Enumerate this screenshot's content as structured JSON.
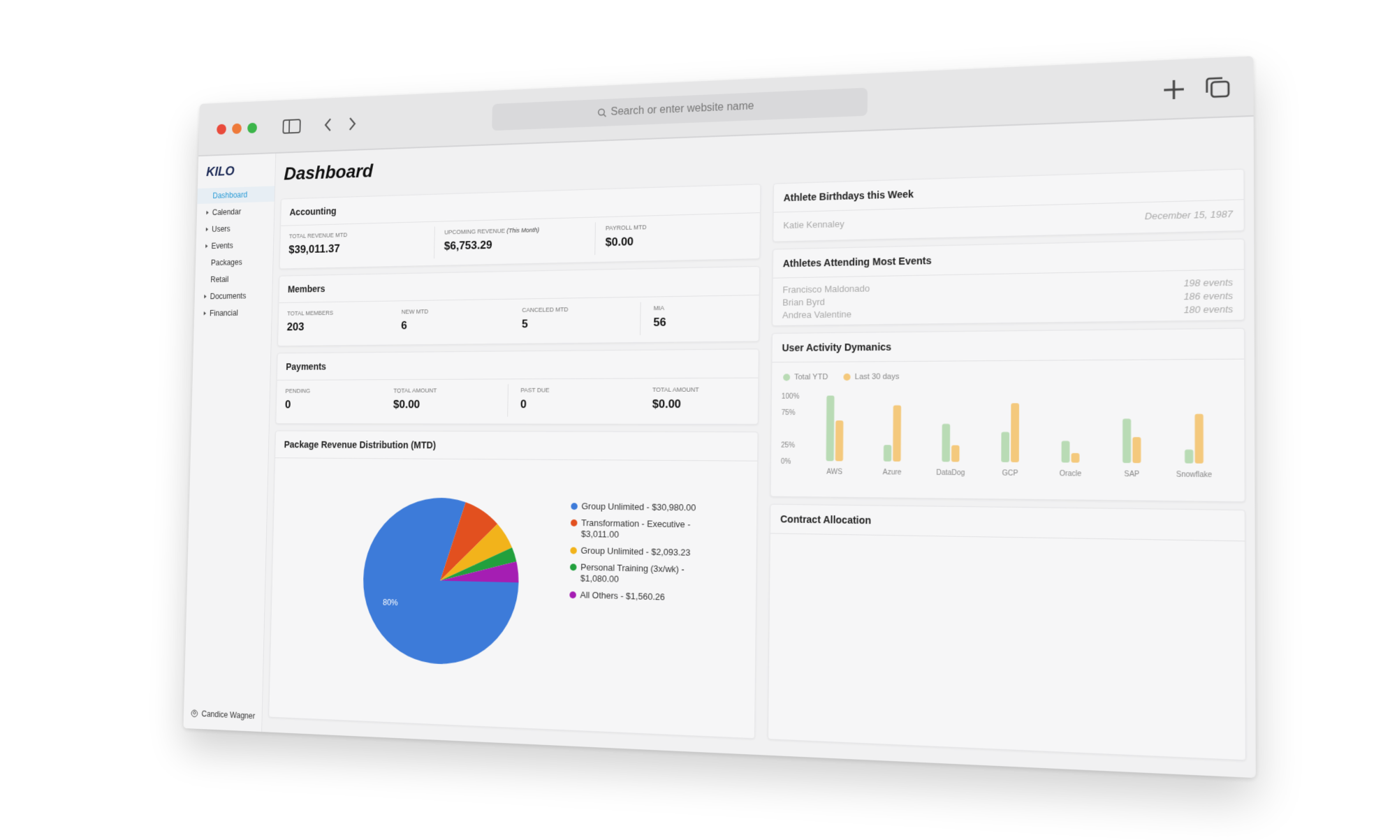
{
  "browser": {
    "search_placeholder": "Search or enter website name"
  },
  "sidebar": {
    "logo": "KILO",
    "nav": [
      "Dashboard",
      "Calendar",
      "Users",
      "Events",
      "Packages",
      "Retail",
      "Documents",
      "Financial"
    ],
    "user": "Candice Wagner"
  },
  "header": {
    "title": "Dashboard"
  },
  "accounting": {
    "title": "Accounting",
    "stats": [
      {
        "label": "TOTAL REVENUE MTD",
        "value": "$39,011.37"
      },
      {
        "label": "UPCOMING REVENUE",
        "note": "(This Month)",
        "value": "$6,753.29"
      },
      {
        "label": "PAYROLL MTD",
        "value": "$0.00"
      }
    ]
  },
  "members": {
    "title": "Members",
    "stats": [
      {
        "label": "TOTAL MEMBERS",
        "value": "203"
      },
      {
        "label": "NEW MTD",
        "value": "6"
      },
      {
        "label": "CANCELED MTD",
        "value": "5"
      },
      {
        "label": "MIA",
        "value": "56"
      }
    ]
  },
  "payments": {
    "title": "Payments",
    "stats": [
      {
        "label": "PENDING",
        "value": "0"
      },
      {
        "label": "TOTAL AMOUNT",
        "value": "$0.00"
      },
      {
        "label": "PAST DUE",
        "value": "0"
      },
      {
        "label": "TOTAL AMOUNT",
        "value": "$0.00"
      }
    ]
  },
  "birthdays": {
    "title": "Athlete Birthdays this Week",
    "rows": [
      {
        "name": "Katie Kennaley",
        "date": "December 15, 1987"
      }
    ]
  },
  "attendance": {
    "title": "Athletes Attending Most Events",
    "rows": [
      {
        "name": "Francisco Maldonado",
        "count": "198 events"
      },
      {
        "name": "Brian Byrd",
        "count": "186 events"
      },
      {
        "name": "Andrea Valentine",
        "count": "180 events"
      }
    ]
  },
  "contract": {
    "title": "Contract Allocation"
  },
  "chart_data": [
    {
      "type": "pie",
      "title": "Package Revenue Distribution (MTD)",
      "categories": [
        "Group Unlimited - $30,980.00",
        "Transformation - Executive - $3,011.00",
        "Group Unlimited - $2,093.23",
        "Personal Training (3x/wk) - $1,080.00",
        "All Others - $1,560.26"
      ],
      "values": [
        30980,
        3011,
        2093.23,
        1080,
        1560.26
      ],
      "colors": [
        "#3d7bd9",
        "#e2501f",
        "#f2b31b",
        "#22a03d",
        "#a51eb3"
      ],
      "annotations": [
        "80%"
      ]
    },
    {
      "type": "bar",
      "title": "User Activity Dymanics",
      "categories": [
        "AWS",
        "Azure",
        "DataDog",
        "GCP",
        "Oracle",
        "SAP",
        "Snowflake"
      ],
      "series": [
        {
          "name": "Total YTD",
          "color": "#b9dbb5",
          "values": [
            100,
            25,
            57,
            45,
            32,
            65,
            20
          ]
        },
        {
          "name": "Last 30 days",
          "color": "#f4c97d",
          "values": [
            62,
            85,
            25,
            88,
            14,
            38,
            72
          ]
        }
      ],
      "ylim": [
        0,
        100
      ],
      "yticks": [
        {
          "value": 0,
          "label": "0%"
        },
        {
          "value": 25,
          "label": "25%"
        },
        {
          "value": 75,
          "label": "75%"
        },
        {
          "value": 100,
          "label": "100%"
        }
      ],
      "legend": "top-left"
    }
  ]
}
